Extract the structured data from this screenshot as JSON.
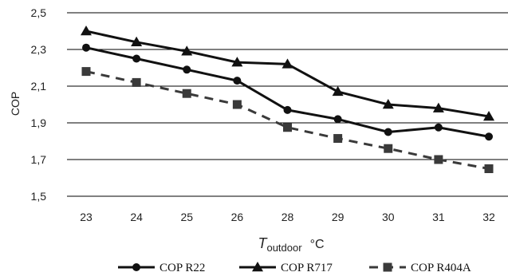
{
  "chart_data": {
    "type": "line",
    "categories": [
      "23",
      "24",
      "25",
      "26",
      "28",
      "29",
      "30",
      "31",
      "32"
    ],
    "ylabel": "COP",
    "xlabel": {
      "symbol": "T",
      "subscript": "outdoor",
      "unit": "°C"
    },
    "ylim": [
      1.5,
      2.5
    ],
    "yticks": [
      "1,5",
      "1,7",
      "1,9",
      "2,1",
      "2,3",
      "2,5"
    ],
    "grid": true,
    "legend_position": "bottom",
    "series": [
      {
        "name": "COP R22",
        "marker": "circle",
        "dash": false,
        "color": "#111111",
        "values": [
          2.31,
          2.25,
          2.19,
          2.13,
          1.97,
          1.92,
          1.85,
          1.875,
          1.825
        ]
      },
      {
        "name": "COP R717",
        "marker": "triangle",
        "dash": false,
        "color": "#111111",
        "values": [
          2.4,
          2.34,
          2.29,
          2.23,
          2.22,
          2.07,
          2.0,
          1.98,
          1.935
        ]
      },
      {
        "name": "COP R404A",
        "marker": "square",
        "dash": true,
        "color": "#3a3a3a",
        "values": [
          2.18,
          2.12,
          2.06,
          2.0,
          1.875,
          1.815,
          1.76,
          1.7,
          1.65
        ]
      }
    ]
  }
}
